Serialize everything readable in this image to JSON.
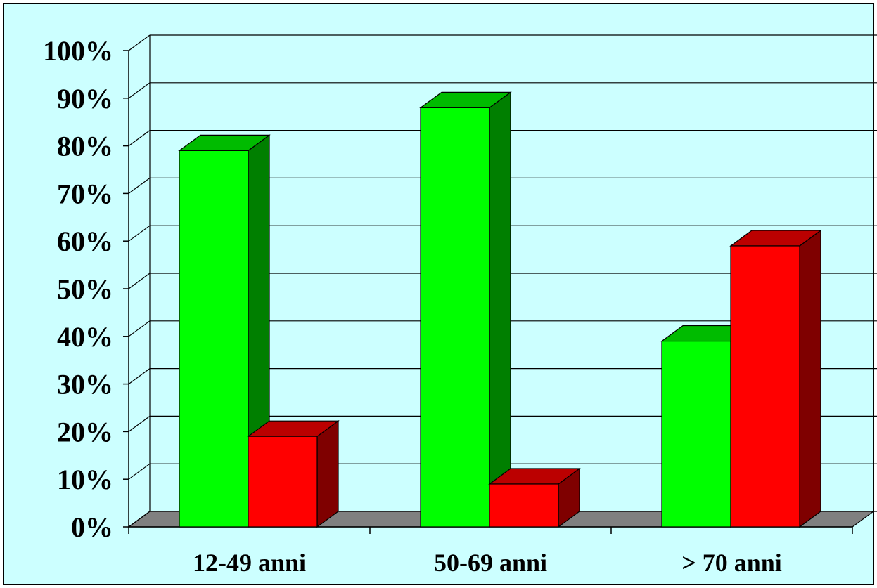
{
  "chart_data": {
    "type": "bar",
    "style": "3d-clustered-column",
    "categories": [
      "12-49 anni",
      "50-69 anni",
      "> 70 anni"
    ],
    "series": [
      {
        "values": [
          79,
          88,
          39
        ],
        "color": "#00ff00"
      },
      {
        "values": [
          19,
          9,
          59
        ],
        "color": "#ff0000"
      }
    ],
    "y_ticks": [
      "0%",
      "10%",
      "20%",
      "30%",
      "40%",
      "50%",
      "60%",
      "70%",
      "80%",
      "90%",
      "100%"
    ],
    "ylim": [
      0,
      100
    ],
    "grid": true,
    "legend": "none",
    "colors": {
      "background": "#ccffff",
      "floor": "#808080",
      "green_top": "#00bb00",
      "green_side": "#007f00",
      "red_top": "#bb0000",
      "red_side": "#7f0000"
    }
  }
}
